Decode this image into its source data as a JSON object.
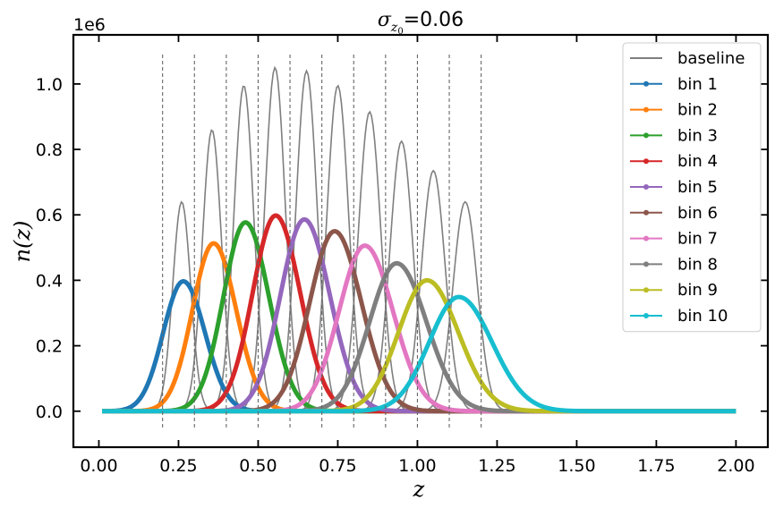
{
  "chart_data": {
    "type": "line",
    "title": "=0.06",
    "title_symbol": "σ",
    "title_subscript_base": "z",
    "title_subscript_index": "0",
    "xlabel": "z",
    "ylabel": "n(z)",
    "offset_text": "1e6",
    "xlim": [
      -0.08,
      2.1
    ],
    "ylim": [
      -0.11,
      1.15
    ],
    "y_scale_factor": 1000000,
    "xticks": [
      0.0,
      0.25,
      0.5,
      0.75,
      1.0,
      1.25,
      1.5,
      1.75,
      2.0
    ],
    "xtick_labels": [
      "0.00",
      "0.25",
      "0.50",
      "0.75",
      "1.00",
      "1.25",
      "1.50",
      "1.75",
      "2.00"
    ],
    "yticks": [
      0.0,
      0.2,
      0.4,
      0.6,
      0.8,
      1.0
    ],
    "ytick_labels": [
      "0.0",
      "0.2",
      "0.4",
      "0.6",
      "0.8",
      "1.0"
    ],
    "grid": false,
    "legend_position": "top-right",
    "bin_edges": [
      0.2,
      0.3,
      0.4,
      0.5,
      0.6,
      0.7,
      0.8,
      0.9,
      1.0,
      1.1,
      1.2
    ],
    "bin_edge_line_ymax": 1.09,
    "x_range": [
      0.01,
      2.0
    ],
    "baseline": {
      "name": "baseline",
      "color": "#7f7f7f",
      "peaks": [
        {
          "center": 0.26,
          "peak": 0.64,
          "width": 0.028
        },
        {
          "center": 0.355,
          "peak": 0.86,
          "width": 0.03
        },
        {
          "center": 0.455,
          "peak": 0.995,
          "width": 0.031
        },
        {
          "center": 0.553,
          "peak": 1.05,
          "width": 0.032
        },
        {
          "center": 0.652,
          "peak": 1.04,
          "width": 0.033
        },
        {
          "center": 0.75,
          "peak": 0.995,
          "width": 0.034
        },
        {
          "center": 0.85,
          "peak": 0.915,
          "width": 0.035
        },
        {
          "center": 0.95,
          "peak": 0.825,
          "width": 0.036
        },
        {
          "center": 1.05,
          "peak": 0.735,
          "width": 0.037
        },
        {
          "center": 1.15,
          "peak": 0.64,
          "width": 0.038
        }
      ]
    },
    "series": [
      {
        "name": "bin 1",
        "color": "#1f77b4",
        "center": 0.265,
        "peak": 0.397,
        "width_left": 0.063,
        "width_right": 0.068
      },
      {
        "name": "bin 2",
        "color": "#ff7f0e",
        "center": 0.36,
        "peak": 0.513,
        "width_left": 0.066,
        "width_right": 0.071
      },
      {
        "name": "bin 3",
        "color": "#2ca02c",
        "center": 0.46,
        "peak": 0.577,
        "width_left": 0.069,
        "width_right": 0.074
      },
      {
        "name": "bin 4",
        "color": "#d62728",
        "center": 0.555,
        "peak": 0.598,
        "width_left": 0.072,
        "width_right": 0.077
      },
      {
        "name": "bin 5",
        "color": "#9467bd",
        "center": 0.645,
        "peak": 0.586,
        "width_left": 0.075,
        "width_right": 0.08
      },
      {
        "name": "bin 6",
        "color": "#8c564b",
        "center": 0.74,
        "peak": 0.55,
        "width_left": 0.078,
        "width_right": 0.084
      },
      {
        "name": "bin 7",
        "color": "#e377c2",
        "center": 0.835,
        "peak": 0.506,
        "width_left": 0.081,
        "width_right": 0.088
      },
      {
        "name": "bin 8",
        "color": "#7f7f7f",
        "center": 0.935,
        "peak": 0.452,
        "width_left": 0.085,
        "width_right": 0.093
      },
      {
        "name": "bin 9",
        "color": "#bcbd22",
        "center": 1.03,
        "peak": 0.4,
        "width_left": 0.089,
        "width_right": 0.098
      },
      {
        "name": "bin 10",
        "color": "#17becf",
        "center": 1.13,
        "peak": 0.349,
        "width_left": 0.093,
        "width_right": 0.104
      }
    ]
  }
}
